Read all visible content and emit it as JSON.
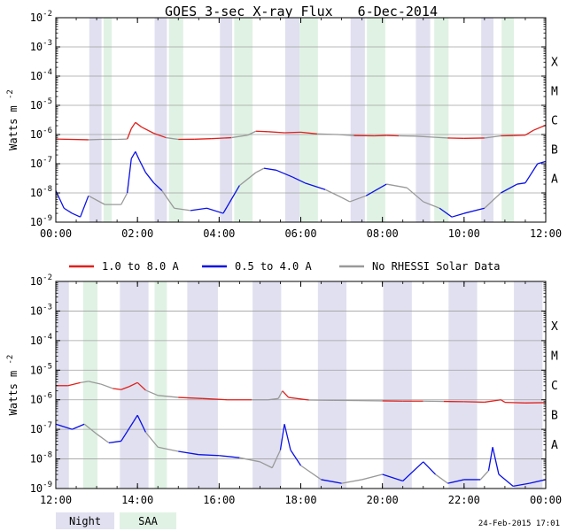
{
  "title": "GOES 3-sec X-ray Flux",
  "date": "6-Dec-2014",
  "ylabel_base": "Watts m",
  "ylabel_exp": "-2",
  "footer_timestamp": "24-Feb-2015 17:01",
  "colors": {
    "long": "#e0201c",
    "short": "#0a10e6",
    "nodata": "#999999",
    "night": "#e0e0f0",
    "saa": "#e0f2e4",
    "grid": "#a0a0a0"
  },
  "legend": [
    {
      "label": "1.0 to 8.0 A",
      "color": "#e0201c"
    },
    {
      "label": "0.5 to 4.0 A",
      "color": "#0a10e6"
    },
    {
      "label": "No RHESSI Solar Data",
      "color": "#999999"
    }
  ],
  "key": {
    "night": "Night",
    "saa": "SAA"
  },
  "class_labels": [
    "A",
    "B",
    "C",
    "M",
    "X"
  ],
  "chart_data": [
    {
      "type": "line",
      "y_scale": "log",
      "ylim": [
        1e-09,
        0.01
      ],
      "xlim_hours": [
        0,
        12
      ],
      "y_ticks": [
        {
          "value": 1e-09,
          "base": "10",
          "exp": "-9"
        },
        {
          "value": 1e-08,
          "base": "10",
          "exp": "-8"
        },
        {
          "value": 1e-07,
          "base": "10",
          "exp": "-7"
        },
        {
          "value": 1e-06,
          "base": "10",
          "exp": "-6"
        },
        {
          "value": 1e-05,
          "base": "10",
          "exp": "-5"
        },
        {
          "value": 0.0001,
          "base": "10",
          "exp": "-4"
        },
        {
          "value": 0.001,
          "base": "10",
          "exp": "-3"
        },
        {
          "value": 0.01,
          "base": "10",
          "exp": "-2"
        }
      ],
      "x_ticks": [
        {
          "value": 0,
          "label": "00:00"
        },
        {
          "value": 2,
          "label": "02:00"
        },
        {
          "value": 4,
          "label": "04:00"
        },
        {
          "value": 6,
          "label": "06:00"
        },
        {
          "value": 8,
          "label": "08:00"
        },
        {
          "value": 10,
          "label": "10:00"
        },
        {
          "value": 12,
          "label": "12:00"
        }
      ],
      "night": [
        [
          0.82,
          1.12
        ],
        [
          2.42,
          2.72
        ],
        [
          4.02,
          4.32
        ],
        [
          5.62,
          5.97
        ],
        [
          7.22,
          7.57
        ],
        [
          8.82,
          9.17
        ],
        [
          10.42,
          10.72
        ]
      ],
      "saa": [
        [
          1.17,
          1.37
        ],
        [
          2.77,
          3.12
        ],
        [
          4.37,
          4.82
        ],
        [
          5.97,
          6.42
        ],
        [
          7.62,
          8.07
        ],
        [
          9.27,
          9.62
        ],
        [
          10.92,
          11.22
        ]
      ],
      "series": [
        {
          "name": "1.0 to 8.0 A",
          "color": "#e0201c",
          "points": [
            [
              0,
              7e-07
            ],
            [
              0.8,
              6.6e-07
            ],
            [
              1.1,
              6.8e-07
            ],
            [
              1.5,
              6.8e-07
            ],
            [
              1.75,
              7e-07
            ],
            [
              1.85,
              1.6e-06
            ],
            [
              1.95,
              2.6e-06
            ],
            [
              2.1,
              1.8e-06
            ],
            [
              2.4,
              1.1e-06
            ],
            [
              2.7,
              7.8e-07
            ],
            [
              3.0,
              6.8e-07
            ],
            [
              3.4,
              6.9e-07
            ],
            [
              3.8,
              7.2e-07
            ],
            [
              4.3,
              7.8e-07
            ],
            [
              4.7,
              9.5e-07
            ],
            [
              4.9,
              1.3e-06
            ],
            [
              5.2,
              1.25e-06
            ],
            [
              5.6,
              1.15e-06
            ],
            [
              6.0,
              1.2e-06
            ],
            [
              6.4,
              1.05e-06
            ],
            [
              6.9,
              1e-06
            ],
            [
              7.3,
              9.2e-07
            ],
            [
              7.8,
              9e-07
            ],
            [
              8.1,
              9.3e-07
            ],
            [
              8.4,
              9e-07
            ],
            [
              8.8,
              8.8e-07
            ],
            [
              9.2,
              8.2e-07
            ],
            [
              9.6,
              7.6e-07
            ],
            [
              10.0,
              7.4e-07
            ],
            [
              10.5,
              7.6e-07
            ],
            [
              10.9,
              9e-07
            ],
            [
              11.2,
              9.2e-07
            ],
            [
              11.5,
              9.5e-07
            ],
            [
              11.7,
              1.4e-06
            ],
            [
              12.0,
              2.1e-06
            ]
          ]
        },
        {
          "name": "0.5 to 4.0 A",
          "color": "#0a10e6",
          "points": [
            [
              0,
              1.2e-08
            ],
            [
              0.2,
              3e-09
            ],
            [
              0.4,
              2e-09
            ],
            [
              0.6,
              1.5e-09
            ],
            [
              0.8,
              8e-09
            ],
            [
              1.2,
              4e-09
            ],
            [
              1.6,
              4e-09
            ],
            [
              1.75,
              1e-08
            ],
            [
              1.85,
              1.5e-07
            ],
            [
              1.95,
              2.6e-07
            ],
            [
              2.05,
              1.3e-07
            ],
            [
              2.2,
              5e-08
            ],
            [
              2.4,
              2.2e-08
            ],
            [
              2.6,
              1.2e-08
            ],
            [
              2.9,
              3e-09
            ],
            [
              3.3,
              2.5e-09
            ],
            [
              3.7,
              3e-09
            ],
            [
              4.1,
              2e-09
            ],
            [
              4.5,
              1.8e-08
            ],
            [
              4.9,
              5e-08
            ],
            [
              5.1,
              7e-08
            ],
            [
              5.4,
              6e-08
            ],
            [
              5.8,
              3.5e-08
            ],
            [
              6.1,
              2.2e-08
            ],
            [
              6.6,
              1.3e-08
            ],
            [
              7.0,
              7e-09
            ],
            [
              7.2,
              5e-09
            ],
            [
              7.6,
              8e-09
            ],
            [
              8.1,
              2e-08
            ],
            [
              8.6,
              1.5e-08
            ],
            [
              9.0,
              5e-09
            ],
            [
              9.4,
              3e-09
            ],
            [
              9.7,
              1.5e-09
            ],
            [
              10.0,
              2e-09
            ],
            [
              10.5,
              3e-09
            ],
            [
              10.9,
              1e-08
            ],
            [
              11.3,
              2e-08
            ],
            [
              11.5,
              2.2e-08
            ],
            [
              11.8,
              1e-07
            ],
            [
              12.0,
              1.2e-07
            ]
          ]
        }
      ],
      "nodata_intervals": [
        [
          0.75,
          1.7
        ],
        [
          2.6,
          3.15
        ],
        [
          4.5,
          5.0
        ],
        [
          6.5,
          7.5
        ],
        [
          8.3,
          9.4
        ],
        [
          10.6,
          11.0
        ]
      ]
    },
    {
      "type": "line",
      "y_scale": "log",
      "ylim": [
        1e-09,
        0.01
      ],
      "xlim_hours": [
        12,
        24
      ],
      "y_ticks": [
        {
          "value": 1e-09,
          "base": "10",
          "exp": "-9"
        },
        {
          "value": 1e-08,
          "base": "10",
          "exp": "-8"
        },
        {
          "value": 1e-07,
          "base": "10",
          "exp": "-7"
        },
        {
          "value": 1e-06,
          "base": "10",
          "exp": "-6"
        },
        {
          "value": 1e-05,
          "base": "10",
          "exp": "-5"
        },
        {
          "value": 0.0001,
          "base": "10",
          "exp": "-4"
        },
        {
          "value": 0.001,
          "base": "10",
          "exp": "-3"
        },
        {
          "value": 0.01,
          "base": "10",
          "exp": "-2"
        }
      ],
      "x_ticks": [
        {
          "value": 12,
          "label": "12:00"
        },
        {
          "value": 14,
          "label": "14:00"
        },
        {
          "value": 16,
          "label": "16:00"
        },
        {
          "value": 18,
          "label": "18:00"
        },
        {
          "value": 20,
          "label": "20:00"
        },
        {
          "value": 22,
          "label": "22:00"
        },
        {
          "value": 24,
          "label": "00:00"
        }
      ],
      "night": [
        [
          12.02,
          12.32
        ],
        [
          13.57,
          14.27
        ],
        [
          15.22,
          15.97
        ],
        [
          16.82,
          17.52
        ],
        [
          18.42,
          19.12
        ],
        [
          20.02,
          20.72
        ],
        [
          21.62,
          22.32
        ],
        [
          23.22,
          23.92
        ]
      ],
      "saa": [
        [
          12.67,
          13.02
        ],
        [
          14.42,
          14.72
        ]
      ],
      "series": [
        {
          "name": "1.0 to 8.0 A",
          "color": "#e0201c",
          "points": [
            [
              12,
              3e-06
            ],
            [
              12.3,
              3e-06
            ],
            [
              12.6,
              3.8e-06
            ],
            [
              12.8,
              4.2e-06
            ],
            [
              13.1,
              3.4e-06
            ],
            [
              13.4,
              2.4e-06
            ],
            [
              13.6,
              2.2e-06
            ],
            [
              13.8,
              2.8e-06
            ],
            [
              14.0,
              3.8e-06
            ],
            [
              14.2,
              2.1e-06
            ],
            [
              14.5,
              1.4e-06
            ],
            [
              15.0,
              1.2e-06
            ],
            [
              15.6,
              1.1e-06
            ],
            [
              16.2,
              1e-06
            ],
            [
              16.8,
              1e-06
            ],
            [
              17.2,
              1e-06
            ],
            [
              17.45,
              1.1e-06
            ],
            [
              17.55,
              2e-06
            ],
            [
              17.7,
              1.2e-06
            ],
            [
              18.2,
              9.8e-07
            ],
            [
              18.8,
              9.6e-07
            ],
            [
              19.4,
              9.4e-07
            ],
            [
              20.0,
              9.2e-07
            ],
            [
              20.5,
              9e-07
            ],
            [
              21.0,
              9e-07
            ],
            [
              21.5,
              8.8e-07
            ],
            [
              22.0,
              8.6e-07
            ],
            [
              22.5,
              8.3e-07
            ],
            [
              22.9,
              1e-06
            ],
            [
              23.0,
              8.2e-07
            ],
            [
              23.5,
              7.8e-07
            ],
            [
              24,
              8e-07
            ]
          ]
        },
        {
          "name": "0.5 to 4.0 A",
          "color": "#0a10e6",
          "points": [
            [
              12,
              1.5e-07
            ],
            [
              12.4,
              1e-07
            ],
            [
              12.7,
              1.5e-07
            ],
            [
              13.0,
              7e-08
            ],
            [
              13.3,
              3.5e-08
            ],
            [
              13.6,
              4e-08
            ],
            [
              13.9,
              1.8e-07
            ],
            [
              14.0,
              3e-07
            ],
            [
              14.2,
              8e-08
            ],
            [
              14.5,
              2.5e-08
            ],
            [
              15.0,
              1.8e-08
            ],
            [
              15.5,
              1.4e-08
            ],
            [
              16.0,
              1.3e-08
            ],
            [
              16.5,
              1.1e-08
            ],
            [
              17.0,
              8e-09
            ],
            [
              17.3,
              5e-09
            ],
            [
              17.5,
              2e-08
            ],
            [
              17.6,
              1.5e-07
            ],
            [
              17.75,
              2e-08
            ],
            [
              18.0,
              6e-09
            ],
            [
              18.5,
              2e-09
            ],
            [
              19.0,
              1.5e-09
            ],
            [
              19.5,
              2e-09
            ],
            [
              20.0,
              3e-09
            ],
            [
              20.5,
              1.8e-09
            ],
            [
              21.0,
              8e-09
            ],
            [
              21.3,
              3e-09
            ],
            [
              21.6,
              1.5e-09
            ],
            [
              22.0,
              2e-09
            ],
            [
              22.4,
              2e-09
            ],
            [
              22.6,
              4e-09
            ],
            [
              22.7,
              2.5e-08
            ],
            [
              22.85,
              3e-09
            ],
            [
              23.2,
              1.2e-09
            ],
            [
              23.6,
              1.5e-09
            ],
            [
              24,
              2e-09
            ]
          ]
        }
      ],
      "nodata_intervals": [
        [
          12.6,
          13.4
        ],
        [
          14.35,
          14.8
        ],
        [
          16.7,
          17.5
        ],
        [
          18.0,
          18.6
        ],
        [
          19.1,
          20.0
        ],
        [
          21.2,
          21.6
        ],
        [
          22.3,
          22.6
        ]
      ]
    }
  ]
}
